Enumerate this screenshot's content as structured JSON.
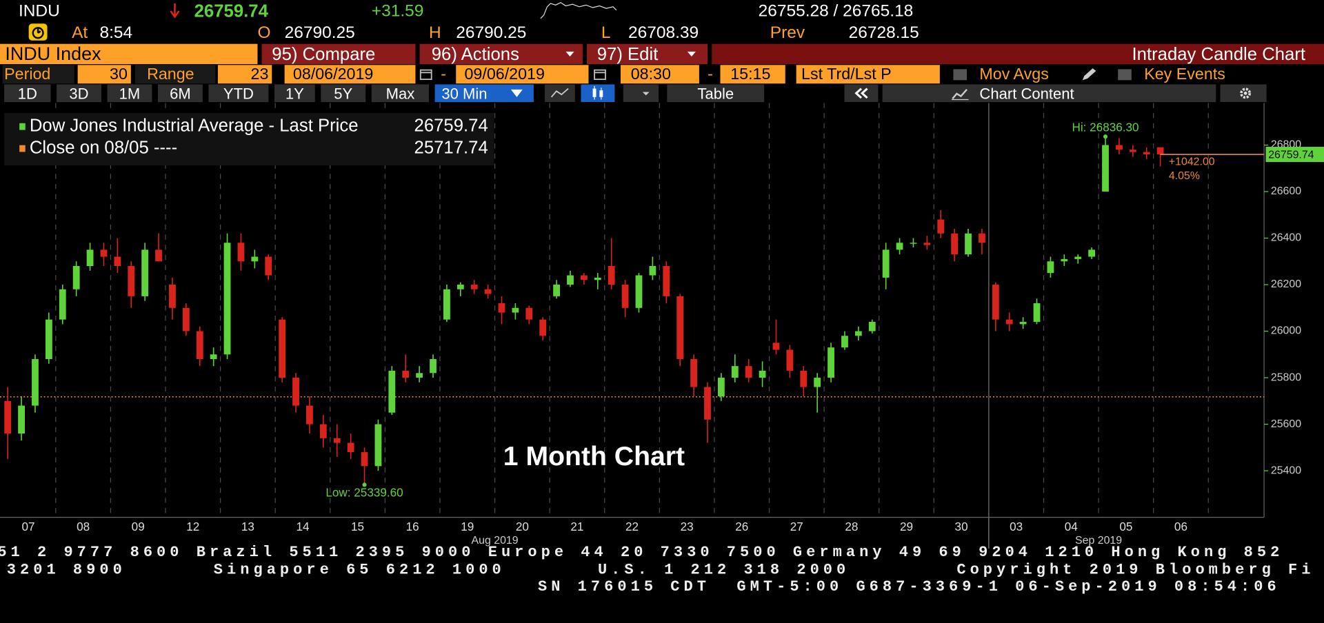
{
  "header": {
    "ticker": "INDU",
    "last": "26759.74",
    "change": "+31.59",
    "bid_ask": "26755.28 / 26765.18",
    "time_label": "At",
    "time": "8:54",
    "open_label": "O",
    "open": "26790.25",
    "high_label": "H",
    "high": "26790.25",
    "low_label": "L",
    "low": "26708.39",
    "prev_label": "Prev",
    "prev": "26728.15"
  },
  "toolbar": {
    "security": "INDU Index",
    "compare": "95) Compare",
    "actions": "96) Actions",
    "edit": "97) Edit",
    "function_title": "Intraday Candle Chart"
  },
  "settings": {
    "period_label": "Period",
    "period": "30",
    "range_label": "Range",
    "range": "23",
    "start_date": "08/06/2019",
    "separator": "-",
    "end_date": "09/06/2019",
    "start_time": "08:30",
    "end_time": "15:15",
    "price_type": "Lst Trd/Lst P",
    "mov_avgs": "Mov Avgs",
    "key_events": "Key Events"
  },
  "timeframes": [
    "1D",
    "3D",
    "1M",
    "6M",
    "YTD",
    "1Y",
    "5Y",
    "Max"
  ],
  "interval": "30 Min",
  "table": "Table",
  "chart_content": "Chart Content",
  "chart_data": {
    "type": "candlestick",
    "title": "1 Month Chart",
    "legend": [
      {
        "name": "Dow Jones Industrial Average - Last Price",
        "value": 26759.74,
        "color": "#5fd43a"
      },
      {
        "name": "Close on 08/05 ----",
        "value": 25717.74,
        "color": "#f08a2c"
      }
    ],
    "categories": [
      "07",
      "08",
      "09",
      "12",
      "13",
      "14",
      "15",
      "16",
      "19",
      "20",
      "21",
      "22",
      "23",
      "26",
      "27",
      "28",
      "29",
      "30",
      "03",
      "04",
      "05",
      "06"
    ],
    "months": [
      "Aug 2019",
      "Sep 2019"
    ],
    "up_color": "#5fd43a",
    "down_color": "#d9231b",
    "ylim": [
      25200,
      26970
    ],
    "yticks": [
      25400,
      25600,
      25800,
      26000,
      26200,
      26400,
      26600,
      26800
    ],
    "hi": {
      "value": 26836.3,
      "label": "Hi: 26836.30"
    },
    "lo": {
      "value": 25339.6,
      "label": "Low: 25339.60"
    },
    "change": {
      "value": 1042,
      "label": "+1042.00"
    },
    "change_pct": {
      "value": 4.05,
      "label": "4.05%"
    },
    "candles": [
      {
        "open": 25700,
        "high": 25760,
        "low": 25450,
        "close": 25560
      },
      {
        "open": 25560,
        "high": 25720,
        "low": 25530,
        "close": 25680
      },
      {
        "open": 25680,
        "high": 25900,
        "low": 25650,
        "close": 25880
      },
      {
        "open": 25880,
        "high": 26080,
        "low": 25860,
        "close": 26050
      },
      {
        "open": 26050,
        "high": 26200,
        "low": 26030,
        "close": 26180
      },
      {
        "open": 26180,
        "high": 26300,
        "low": 26150,
        "close": 26280
      },
      {
        "open": 26280,
        "high": 26380,
        "low": 26260,
        "close": 26350
      },
      {
        "open": 26350,
        "high": 26380,
        "low": 26280,
        "close": 26320
      },
      {
        "open": 26320,
        "high": 26400,
        "low": 26250,
        "close": 26280
      },
      {
        "open": 26280,
        "high": 26300,
        "low": 26100,
        "close": 26150
      },
      {
        "open": 26150,
        "high": 26380,
        "low": 26130,
        "close": 26350
      },
      {
        "open": 26350,
        "high": 26420,
        "low": 26300,
        "close": 26300
      },
      {
        "open": 26200,
        "high": 26230,
        "low": 26050,
        "close": 26100
      },
      {
        "open": 26100,
        "high": 26120,
        "low": 25980,
        "close": 26000
      },
      {
        "open": 26000,
        "high": 26020,
        "low": 25850,
        "close": 25880
      },
      {
        "open": 25880,
        "high": 25930,
        "low": 25850,
        "close": 25900
      },
      {
        "open": 25900,
        "high": 26420,
        "low": 25880,
        "close": 26380
      },
      {
        "open": 26380,
        "high": 26420,
        "low": 26260,
        "close": 26300
      },
      {
        "open": 26300,
        "high": 26350,
        "low": 26270,
        "close": 26320
      },
      {
        "open": 26320,
        "high": 26330,
        "low": 26220,
        "close": 26240
      },
      {
        "open": 26050,
        "high": 26060,
        "low": 25780,
        "close": 25800
      },
      {
        "open": 25800,
        "high": 25820,
        "low": 25650,
        "close": 25680
      },
      {
        "open": 25680,
        "high": 25720,
        "low": 25560,
        "close": 25600
      },
      {
        "open": 25600,
        "high": 25640,
        "low": 25500,
        "close": 25540
      },
      {
        "open": 25540,
        "high": 25600,
        "low": 25460,
        "close": 25520
      },
      {
        "open": 25520,
        "high": 25560,
        "low": 25450,
        "close": 25480
      },
      {
        "open": 25480,
        "high": 25500,
        "low": 25339.6,
        "close": 25420
      },
      {
        "open": 25420,
        "high": 25620,
        "low": 25400,
        "close": 25600
      },
      {
        "open": 25650,
        "high": 25850,
        "low": 25640,
        "close": 25830
      },
      {
        "open": 25830,
        "high": 25900,
        "low": 25780,
        "close": 25800
      },
      {
        "open": 25800,
        "high": 25850,
        "low": 25780,
        "close": 25820
      },
      {
        "open": 25820,
        "high": 25900,
        "low": 25800,
        "close": 25880
      },
      {
        "open": 26050,
        "high": 26200,
        "low": 26040,
        "close": 26180
      },
      {
        "open": 26180,
        "high": 26210,
        "low": 26150,
        "close": 26200
      },
      {
        "open": 26200,
        "high": 26220,
        "low": 26160,
        "close": 26180
      },
      {
        "open": 26180,
        "high": 26200,
        "low": 26140,
        "close": 26160
      },
      {
        "open": 26120,
        "high": 26150,
        "low": 26030,
        "close": 26080
      },
      {
        "open": 26080,
        "high": 26120,
        "low": 26050,
        "close": 26100
      },
      {
        "open": 26100,
        "high": 26110,
        "low": 26030,
        "close": 26050
      },
      {
        "open": 26050,
        "high": 26060,
        "low": 25960,
        "close": 25980
      },
      {
        "open": 26150,
        "high": 26220,
        "low": 26140,
        "close": 26200
      },
      {
        "open": 26200,
        "high": 26260,
        "low": 26190,
        "close": 26240
      },
      {
        "open": 26240,
        "high": 26250,
        "low": 26200,
        "close": 26220
      },
      {
        "open": 26220,
        "high": 26250,
        "low": 26180,
        "close": 26230
      },
      {
        "open": 26280,
        "high": 26400,
        "low": 26180,
        "close": 26200
      },
      {
        "open": 26200,
        "high": 26220,
        "low": 26060,
        "close": 26100
      },
      {
        "open": 26100,
        "high": 26250,
        "low": 26080,
        "close": 26240
      },
      {
        "open": 26240,
        "high": 26320,
        "low": 26220,
        "close": 26280
      },
      {
        "open": 26280,
        "high": 26300,
        "low": 26120,
        "close": 26150
      },
      {
        "open": 26150,
        "high": 26160,
        "low": 25850,
        "close": 25880
      },
      {
        "open": 25880,
        "high": 25900,
        "low": 25720,
        "close": 25760
      },
      {
        "open": 25760,
        "high": 25780,
        "low": 25520,
        "close": 25620
      },
      {
        "open": 25720,
        "high": 25820,
        "low": 25700,
        "close": 25800
      },
      {
        "open": 25800,
        "high": 25900,
        "low": 25780,
        "close": 25850
      },
      {
        "open": 25850,
        "high": 25880,
        "low": 25780,
        "close": 25800
      },
      {
        "open": 25800,
        "high": 25870,
        "low": 25760,
        "close": 25830
      },
      {
        "open": 25950,
        "high": 26050,
        "low": 25900,
        "close": 25920
      },
      {
        "open": 25920,
        "high": 25940,
        "low": 25800,
        "close": 25830
      },
      {
        "open": 25830,
        "high": 25850,
        "low": 25720,
        "close": 25760
      },
      {
        "open": 25760,
        "high": 25820,
        "low": 25650,
        "close": 25800
      },
      {
        "open": 25800,
        "high": 25950,
        "low": 25780,
        "close": 25930
      },
      {
        "open": 25930,
        "high": 26000,
        "low": 25920,
        "close": 25980
      },
      {
        "open": 25980,
        "high": 26020,
        "low": 25960,
        "close": 26000
      },
      {
        "open": 26000,
        "high": 26050,
        "low": 25990,
        "close": 26040
      },
      {
        "open": 26230,
        "high": 26380,
        "low": 26180,
        "close": 26350
      },
      {
        "open": 26350,
        "high": 26400,
        "low": 26330,
        "close": 26380
      },
      {
        "open": 26380,
        "high": 26400,
        "low": 26360,
        "close": 26380
      },
      {
        "open": 26380,
        "high": 26410,
        "low": 26350,
        "close": 26370
      },
      {
        "open": 26480,
        "high": 26520,
        "low": 26400,
        "close": 26420
      },
      {
        "open": 26420,
        "high": 26440,
        "low": 26300,
        "close": 26330
      },
      {
        "open": 26330,
        "high": 26440,
        "low": 26320,
        "close": 26420
      },
      {
        "open": 26420,
        "high": 26440,
        "low": 26330,
        "close": 26380
      },
      {
        "open": 26200,
        "high": 26210,
        "low": 26000,
        "close": 26050
      },
      {
        "open": 26050,
        "high": 26080,
        "low": 26000,
        "close": 26030
      },
      {
        "open": 26030,
        "high": 26060,
        "low": 26010,
        "close": 26040
      },
      {
        "open": 26040,
        "high": 26140,
        "low": 26030,
        "close": 26120
      },
      {
        "open": 26250,
        "high": 26320,
        "low": 26230,
        "close": 26300
      },
      {
        "open": 26300,
        "high": 26330,
        "low": 26280,
        "close": 26310
      },
      {
        "open": 26310,
        "high": 26330,
        "low": 26290,
        "close": 26320
      },
      {
        "open": 26320,
        "high": 26360,
        "low": 26310,
        "close": 26350
      },
      {
        "open": 26600,
        "high": 26836.3,
        "low": 26600,
        "close": 26800
      },
      {
        "open": 26800,
        "high": 26830,
        "low": 26760,
        "close": 26780
      },
      {
        "open": 26780,
        "high": 26800,
        "low": 26750,
        "close": 26770
      },
      {
        "open": 26770,
        "high": 26790,
        "low": 26740,
        "close": 26760
      },
      {
        "open": 26790.25,
        "high": 26790.25,
        "low": 26708.39,
        "close": 26759.74
      }
    ]
  },
  "footer": {
    "line1": "51 2 9777 8600 Brazil 5511 2395 9000 Europe 44 20 7330 7500 Germany 49 69 9204 1210 Hong Kong 852",
    "line2": [
      "3201 8900",
      "Singapore 65 6212 1000",
      "U.S. 1 212 318 2000",
      "Copyright 2019 Bloomberg Fi"
    ],
    "line3": "SN 176015 CDT  GMT-5:00 G687-3369-1 06-Sep-2019 08:54:06"
  }
}
